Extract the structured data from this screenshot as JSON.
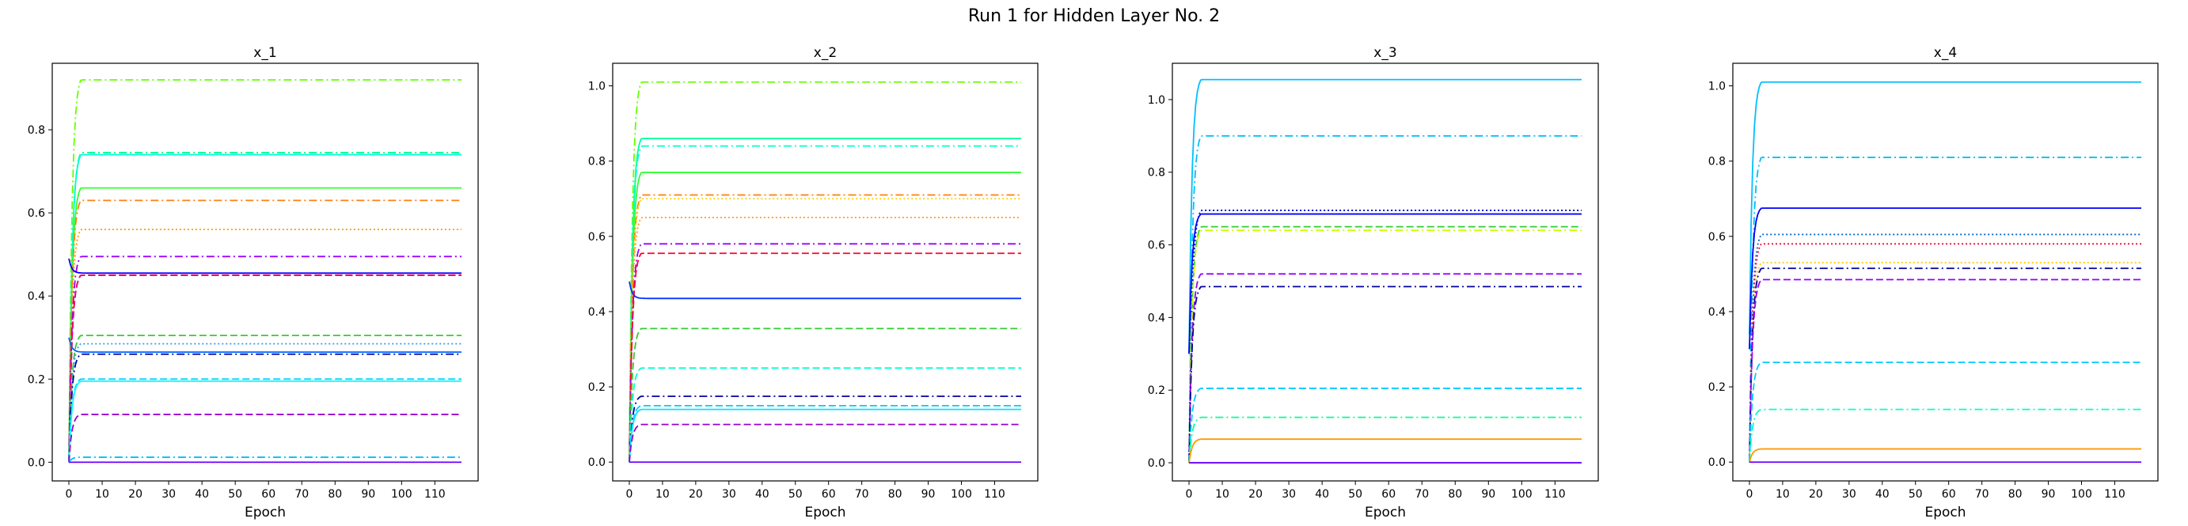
{
  "figure": {
    "title": "Run 1 for Hidden Layer No. 2"
  },
  "chart_data": [
    {
      "type": "line",
      "title": "x_1",
      "xlabel": "Epoch",
      "ylabel": "",
      "xlim": [
        -5,
        123
      ],
      "ylim": [
        -0.045,
        0.96
      ],
      "xticks": [
        0,
        10,
        20,
        30,
        40,
        50,
        60,
        70,
        80,
        90,
        100,
        110
      ],
      "yticks": [
        0.0,
        0.2,
        0.4,
        0.6,
        0.8
      ],
      "grid": false,
      "series": [
        {
          "color": "#66ff00",
          "style": "dashdot",
          "final": 0.92,
          "start": 0.0
        },
        {
          "color": "#00ff99",
          "style": "dashdot",
          "final": 0.745,
          "start": 0.0
        },
        {
          "color": "#00ffcc",
          "style": "solid",
          "final": 0.74,
          "start": 0.0
        },
        {
          "color": "#33ff33",
          "style": "solid",
          "final": 0.66,
          "start": 0.0
        },
        {
          "color": "#ff7f0e",
          "style": "dashdot",
          "final": 0.63,
          "start": 0.0
        },
        {
          "color": "#ff9900",
          "style": "dotted",
          "final": 0.56,
          "start": 0.0
        },
        {
          "color": "#9900ff",
          "style": "dashdot",
          "final": 0.495,
          "start": 0.0
        },
        {
          "color": "#0000ff",
          "style": "solid",
          "final": 0.455,
          "start": 0.49
        },
        {
          "color": "#000080",
          "style": "dashed",
          "final": 0.45,
          "start": 0.0
        },
        {
          "color": "#ff0066",
          "style": "dashed",
          "final": 0.45,
          "start": 0.0
        },
        {
          "color": "#33cc33",
          "style": "dashed",
          "final": 0.305,
          "start": 0.0
        },
        {
          "color": "#3399ff",
          "style": "dotted",
          "final": 0.285,
          "start": 0.0
        },
        {
          "color": "#0066ff",
          "style": "solid",
          "final": 0.265,
          "start": 0.3
        },
        {
          "color": "#000099",
          "style": "dashdot",
          "final": 0.26,
          "start": 0.0
        },
        {
          "color": "#00ccff",
          "style": "dashed",
          "final": 0.2,
          "start": 0.0
        },
        {
          "color": "#00ffff",
          "style": "solid",
          "final": 0.195,
          "start": 0.0
        },
        {
          "color": "#9900cc",
          "style": "dashed",
          "final": 0.115,
          "start": 0.0
        },
        {
          "color": "#00bfff",
          "style": "dashdot",
          "final": 0.012,
          "start": 0.0
        },
        {
          "color": "#6600ff",
          "style": "solid",
          "final": 0.0,
          "start": 0.0
        }
      ]
    },
    {
      "type": "line",
      "title": "x_2",
      "xlabel": "Epoch",
      "ylabel": "",
      "xlim": [
        -5,
        123
      ],
      "ylim": [
        -0.05,
        1.06
      ],
      "xticks": [
        0,
        10,
        20,
        30,
        40,
        50,
        60,
        70,
        80,
        90,
        100,
        110
      ],
      "yticks": [
        0.0,
        0.2,
        0.4,
        0.6,
        0.8,
        1.0
      ],
      "grid": false,
      "series": [
        {
          "color": "#66ff00",
          "style": "dashdot",
          "final": 1.01,
          "start": 0.0
        },
        {
          "color": "#00ff99",
          "style": "solid",
          "final": 0.86,
          "start": 0.0
        },
        {
          "color": "#00ffcc",
          "style": "dashdot",
          "final": 0.84,
          "start": 0.0
        },
        {
          "color": "#33ff33",
          "style": "solid",
          "final": 0.77,
          "start": 0.0
        },
        {
          "color": "#ff7f0e",
          "style": "dashdot",
          "final": 0.71,
          "start": 0.0
        },
        {
          "color": "#ffcc00",
          "style": "dotted",
          "final": 0.7,
          "start": 0.0
        },
        {
          "color": "#ff9933",
          "style": "dotted",
          "final": 0.65,
          "start": 0.0
        },
        {
          "color": "#9900ff",
          "style": "dashdot",
          "final": 0.58,
          "start": 0.0
        },
        {
          "color": "#ff0033",
          "style": "dashed",
          "final": 0.555,
          "start": 0.0
        },
        {
          "color": "#0033ff",
          "style": "solid",
          "final": 0.435,
          "start": 0.48
        },
        {
          "color": "#33cc33",
          "style": "dashed",
          "final": 0.355,
          "start": 0.0
        },
        {
          "color": "#00ffcc",
          "style": "dashed",
          "final": 0.25,
          "start": 0.0
        },
        {
          "color": "#000099",
          "style": "dashdot",
          "final": 0.175,
          "start": 0.0
        },
        {
          "color": "#00ccff",
          "style": "dashed",
          "final": 0.15,
          "start": 0.0
        },
        {
          "color": "#00e5ff",
          "style": "solid",
          "final": 0.14,
          "start": 0.0
        },
        {
          "color": "#9900cc",
          "style": "dashed",
          "final": 0.1,
          "start": 0.0
        },
        {
          "color": "#6600ff",
          "style": "solid",
          "final": 0.0,
          "start": 0.0
        }
      ]
    },
    {
      "type": "line",
      "title": "x_3",
      "xlabel": "Epoch",
      "ylabel": "",
      "xlim": [
        -5,
        123
      ],
      "ylim": [
        -0.05,
        1.1
      ],
      "xticks": [
        0,
        10,
        20,
        30,
        40,
        50,
        60,
        70,
        80,
        90,
        100,
        110
      ],
      "yticks": [
        0.0,
        0.2,
        0.4,
        0.6,
        0.8,
        1.0
      ],
      "grid": false,
      "series": [
        {
          "color": "#00bfff",
          "style": "solid",
          "final": 1.055,
          "start": 0.3
        },
        {
          "color": "#00bfff",
          "style": "dashdot",
          "final": 0.9,
          "start": 0.0
        },
        {
          "color": "#0000cc",
          "style": "dotted",
          "final": 0.695,
          "start": 0.0
        },
        {
          "color": "#0000ff",
          "style": "solid",
          "final": 0.685,
          "start": 0.3
        },
        {
          "color": "#33cc33",
          "style": "dashed",
          "final": 0.65,
          "start": 0.0
        },
        {
          "color": "#ccff00",
          "style": "dashdot",
          "final": 0.64,
          "start": 0.0
        },
        {
          "color": "#9900ff",
          "style": "dashed",
          "final": 0.52,
          "start": 0.0
        },
        {
          "color": "#000099",
          "style": "dashdot",
          "final": 0.485,
          "start": 0.0
        },
        {
          "color": "#00ccff",
          "style": "dashed",
          "final": 0.205,
          "start": 0.0
        },
        {
          "color": "#00ff99",
          "style": "dashdot",
          "final": 0.125,
          "start": 0.0
        },
        {
          "color": "#ff9900",
          "style": "solid",
          "final": 0.065,
          "start": 0.0
        },
        {
          "color": "#6600ff",
          "style": "solid",
          "final": 0.0,
          "start": 0.0
        }
      ]
    },
    {
      "type": "line",
      "title": "x_4",
      "xlabel": "Epoch",
      "ylabel": "",
      "xlim": [
        -5,
        123
      ],
      "ylim": [
        -0.05,
        1.06
      ],
      "xticks": [
        0,
        10,
        20,
        30,
        40,
        50,
        60,
        70,
        80,
        90,
        100,
        110
      ],
      "yticks": [
        0.0,
        0.2,
        0.4,
        0.6,
        0.8,
        1.0
      ],
      "grid": false,
      "series": [
        {
          "color": "#00bfff",
          "style": "solid",
          "final": 1.01,
          "start": 0.34
        },
        {
          "color": "#00bfff",
          "style": "dashdot",
          "final": 0.81,
          "start": 0.0
        },
        {
          "color": "#0000ff",
          "style": "solid",
          "final": 0.675,
          "start": 0.3
        },
        {
          "color": "#0066cc",
          "style": "dotted",
          "final": 0.605,
          "start": 0.0
        },
        {
          "color": "#ff0033",
          "style": "dotted",
          "final": 0.58,
          "start": 0.0
        },
        {
          "color": "#ffcc00",
          "style": "dotted",
          "final": 0.53,
          "start": 0.0
        },
        {
          "color": "#000099",
          "style": "dashdot",
          "final": 0.515,
          "start": 0.0
        },
        {
          "color": "#9900ff",
          "style": "dashed",
          "final": 0.485,
          "start": 0.0
        },
        {
          "color": "#00ccff",
          "style": "dashed",
          "final": 0.265,
          "start": 0.0
        },
        {
          "color": "#00ffcc",
          "style": "dashdot",
          "final": 0.14,
          "start": 0.0
        },
        {
          "color": "#ff9900",
          "style": "solid",
          "final": 0.035,
          "start": 0.0
        },
        {
          "color": "#6600ff",
          "style": "solid",
          "final": 0.0,
          "start": 0.0
        }
      ]
    }
  ]
}
